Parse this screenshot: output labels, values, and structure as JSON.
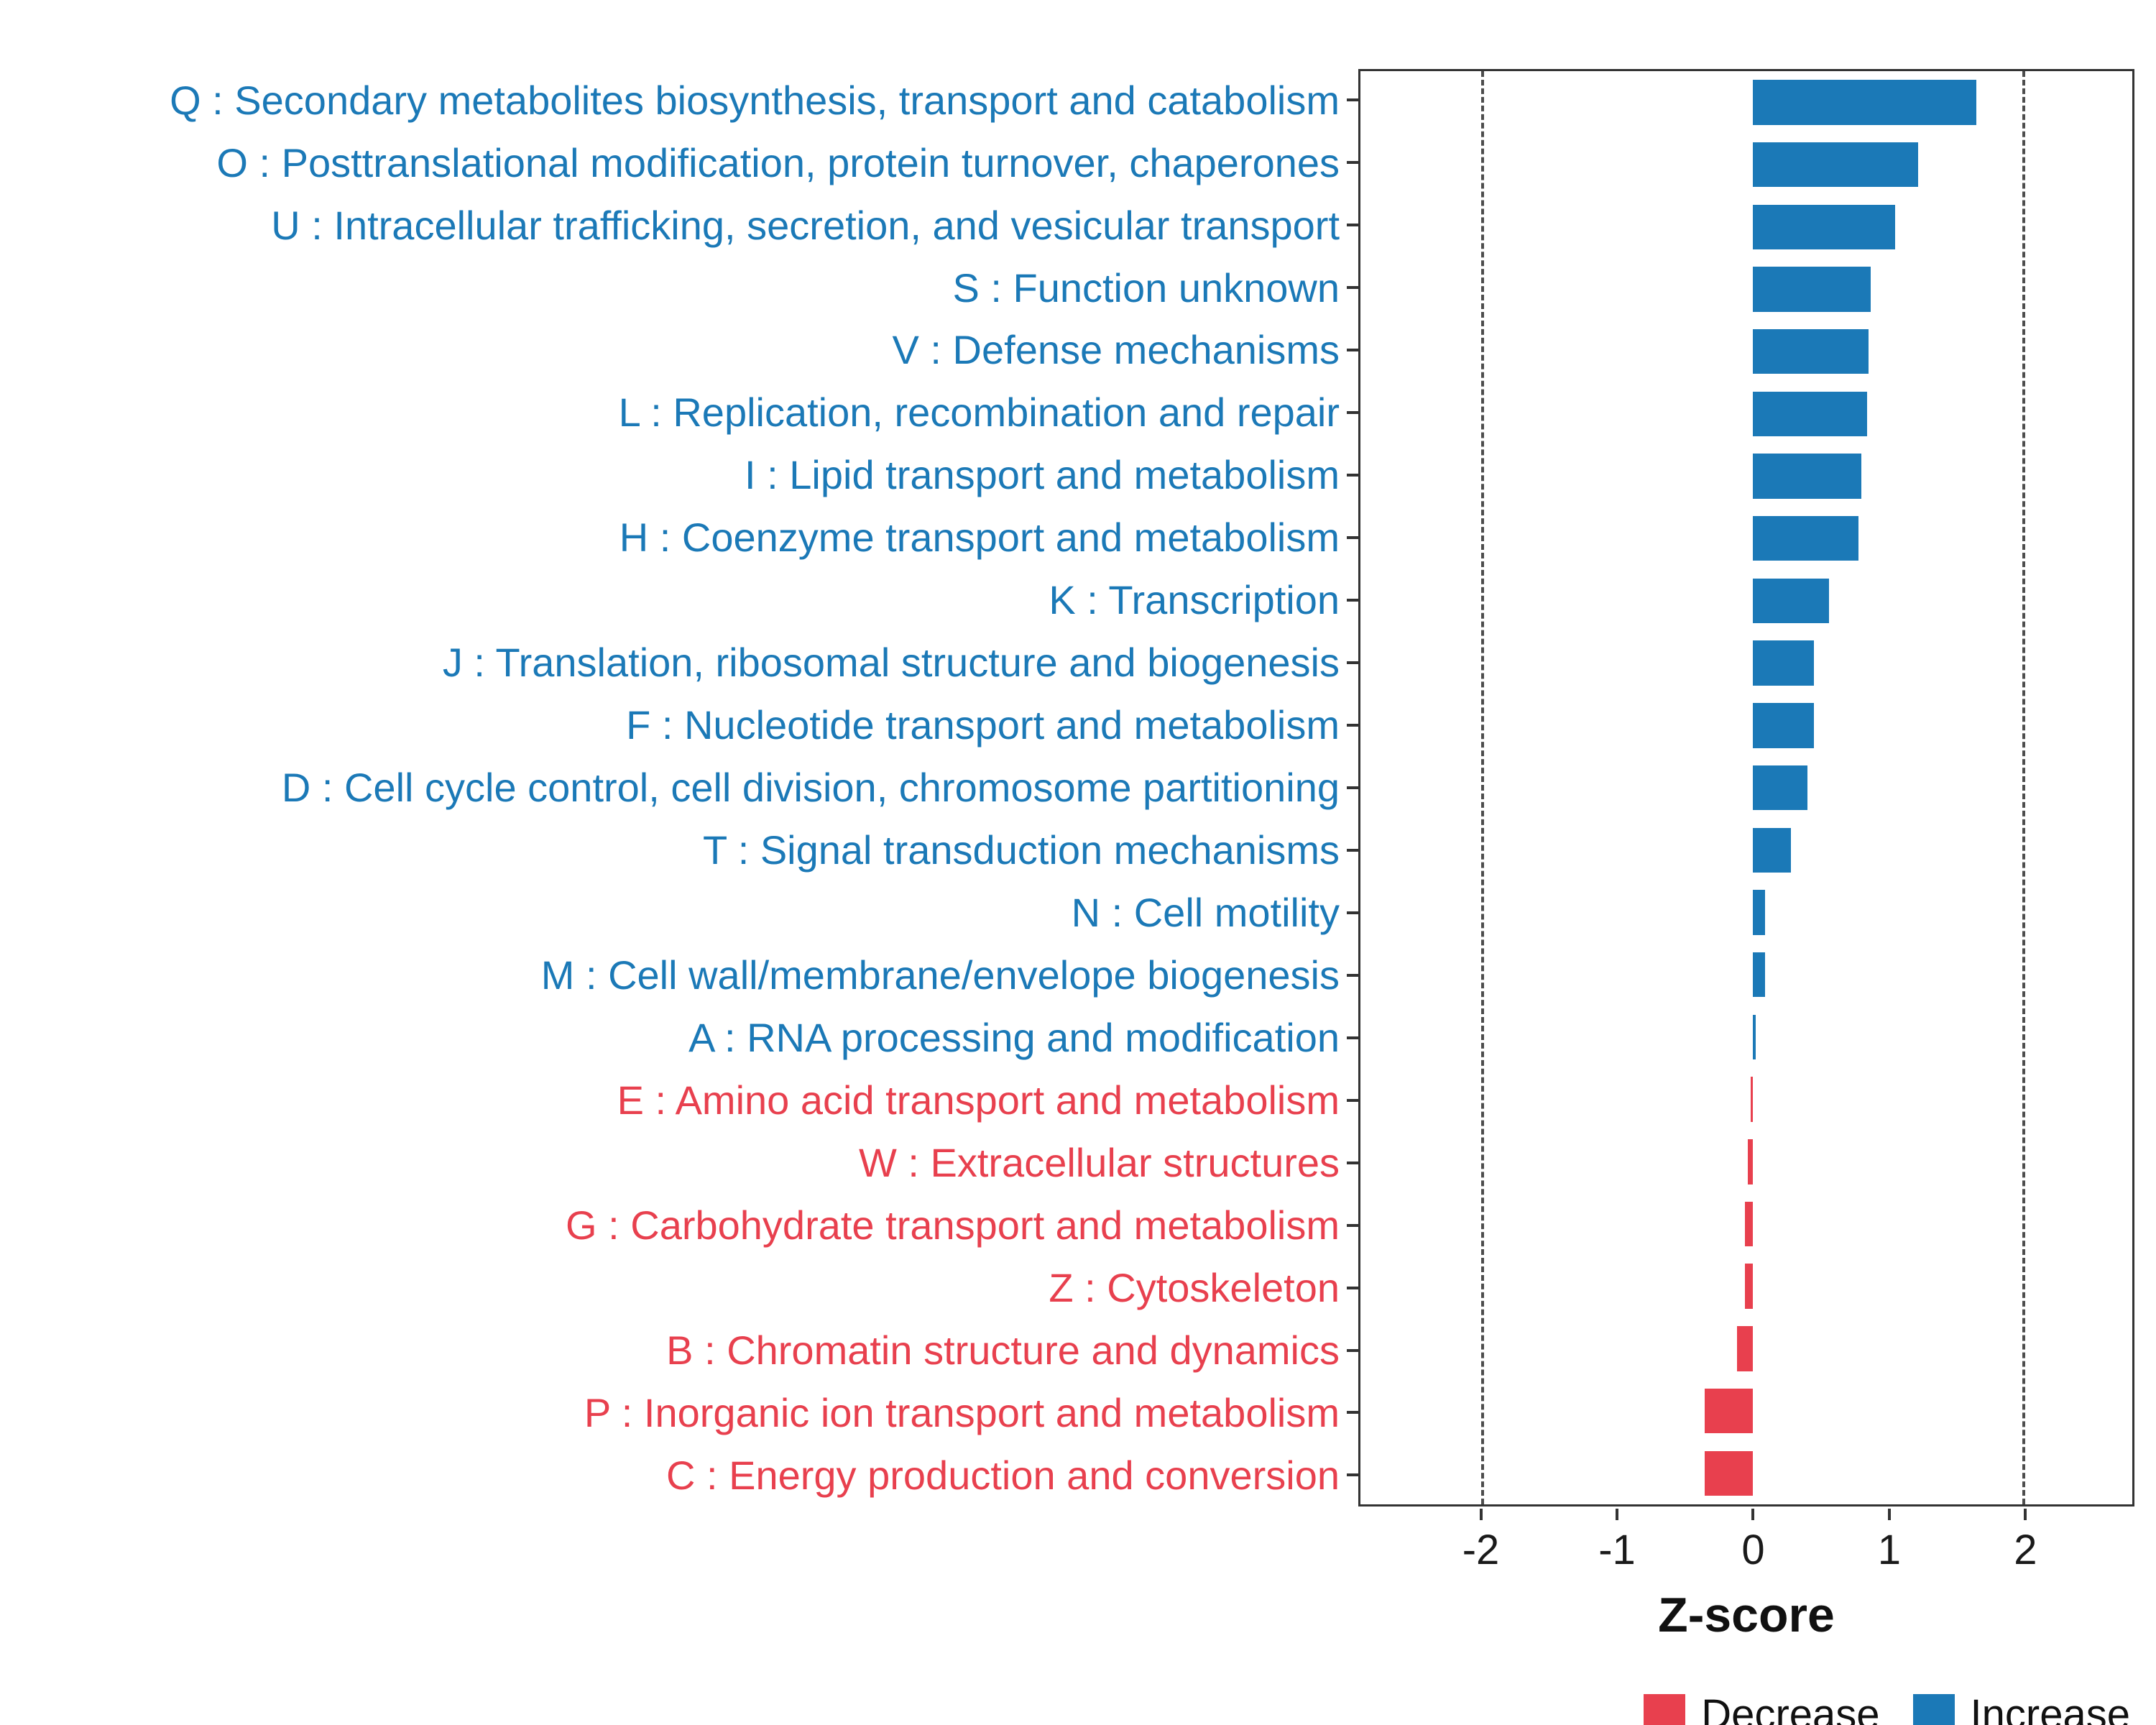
{
  "chart_data": {
    "type": "bar",
    "orientation": "horizontal",
    "title": "",
    "xlabel": "Z-score",
    "ylabel": "",
    "xlim": [
      -2.9,
      2.8
    ],
    "x_ticks": [
      -2,
      -1,
      0,
      1,
      2
    ],
    "dashed_lines": [
      -2,
      2
    ],
    "grid": "off",
    "legend_position": "bottom-right",
    "colors": {
      "increase": "#1B79B7",
      "decrease": "#E8404E"
    },
    "legend": [
      {
        "key": "decrease",
        "label": "Decrease",
        "color": "#E8404E"
      },
      {
        "key": "increase",
        "label": "Increase",
        "color": "#1B79B7"
      }
    ],
    "categories": [
      "Q : Secondary metabolites biosynthesis, transport and catabolism",
      "O : Posttranslational modification, protein turnover, chaperones",
      "U : Intracellular trafficking, secretion, and vesicular transport",
      "S : Function unknown",
      "V : Defense mechanisms",
      "L : Replication, recombination and repair",
      "I : Lipid transport and metabolism",
      "H : Coenzyme transport and metabolism",
      "K : Transcription",
      "J : Translation, ribosomal structure and biogenesis",
      "F : Nucleotide transport and metabolism",
      "D : Cell cycle control, cell division, chromosome partitioning",
      "T : Signal transduction mechanisms",
      "N : Cell motility",
      "M : Cell wall/membrane/envelope biogenesis",
      "A : RNA processing and modification",
      "E : Amino acid transport and metabolism",
      "W : Extracellular structures",
      "G : Carbohydrate transport and metabolism",
      "Z : Cytoskeleton",
      "B : Chromatin structure and dynamics",
      "P : Inorganic ion transport and metabolism",
      "C : Energy production and conversion"
    ],
    "values": [
      1.65,
      1.22,
      1.05,
      0.87,
      0.85,
      0.84,
      0.8,
      0.78,
      0.56,
      0.45,
      0.45,
      0.4,
      0.28,
      0.09,
      0.09,
      0.02,
      -0.02,
      -0.04,
      -0.06,
      -0.06,
      -0.12,
      -0.36,
      -0.36
    ],
    "directions": [
      "increase",
      "increase",
      "increase",
      "increase",
      "increase",
      "increase",
      "increase",
      "increase",
      "increase",
      "increase",
      "increase",
      "increase",
      "increase",
      "increase",
      "increase",
      "increase",
      "decrease",
      "decrease",
      "decrease",
      "decrease",
      "decrease",
      "decrease",
      "decrease"
    ]
  }
}
